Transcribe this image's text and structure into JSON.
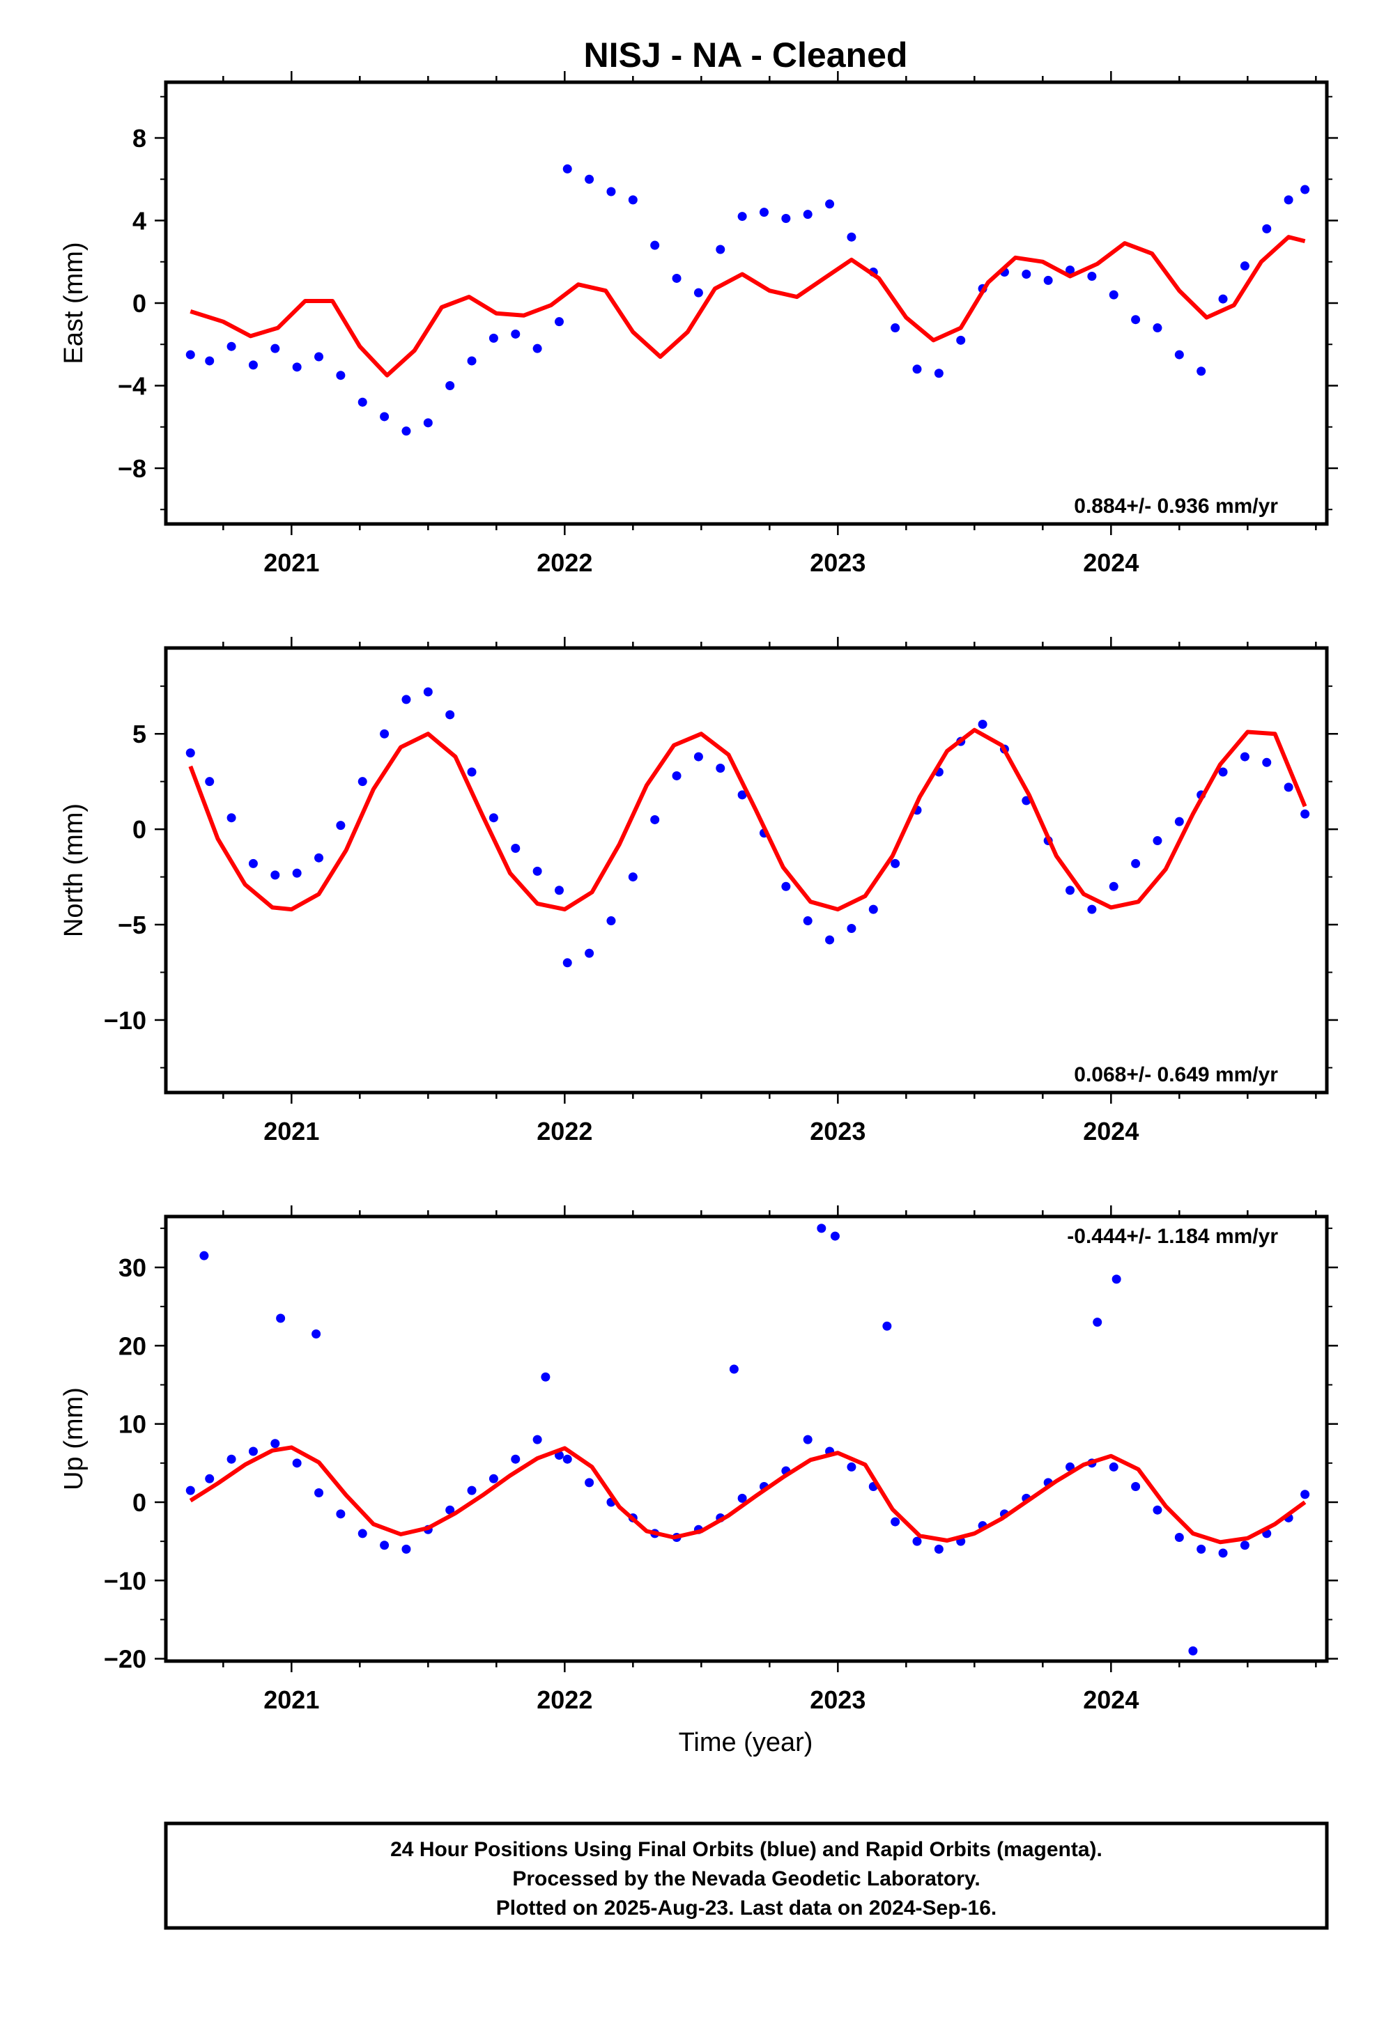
{
  "title": "NISJ  - NA - Cleaned",
  "chart_data": [
    {
      "type": "scatter",
      "ylabel": "East (mm)",
      "xlim": [
        2020.54,
        2024.79
      ],
      "ylim": [
        -10.7,
        10.7
      ],
      "yticks": [
        -8,
        -4,
        0,
        4,
        8
      ],
      "xticks": [
        2021,
        2022,
        2023,
        2024
      ],
      "xtick_labels": [
        "2021",
        "2022",
        "2023",
        "2024"
      ],
      "rate_label": "0.884+/- 0.936 mm/yr",
      "series": [
        {
          "color": "#0000ff",
          "x": [
            2020.63,
            2020.7,
            2020.78,
            2020.86,
            2020.94,
            2021.02,
            2021.1,
            2021.18,
            2021.26,
            2021.34,
            2021.42,
            2021.5,
            2021.58,
            2021.66,
            2021.74,
            2021.82,
            2021.9,
            2021.98,
            2022.01,
            2022.09,
            2022.17,
            2022.25,
            2022.33,
            2022.41,
            2022.49,
            2022.57,
            2022.65,
            2022.73,
            2022.81,
            2022.89,
            2022.97,
            2023.05,
            2023.13,
            2023.21,
            2023.29,
            2023.37,
            2023.45,
            2023.53,
            2023.61,
            2023.69,
            2023.77,
            2023.85,
            2023.93,
            2024.01,
            2024.09,
            2024.17,
            2024.25,
            2024.33,
            2024.41,
            2024.49,
            2024.57,
            2024.65,
            2024.71
          ],
          "y": [
            -2.5,
            -2.8,
            -2.1,
            -3.0,
            -2.2,
            -3.1,
            -2.6,
            -3.5,
            -4.8,
            -5.5,
            -6.2,
            -5.8,
            -4.0,
            -2.8,
            -1.7,
            -1.5,
            -2.2,
            -0.9,
            6.5,
            6.0,
            5.4,
            5.0,
            2.8,
            1.2,
            0.5,
            2.6,
            4.2,
            4.4,
            4.1,
            4.3,
            4.8,
            3.2,
            1.5,
            -1.2,
            -3.2,
            -3.4,
            -1.8,
            0.7,
            1.5,
            1.4,
            1.1,
            1.6,
            1.3,
            0.4,
            -0.8,
            -1.2,
            -2.5,
            -3.3,
            0.2,
            1.8,
            3.6,
            5.0,
            5.5
          ]
        },
        {
          "color": "#ff0000",
          "x": [
            2020.63,
            2020.75,
            2020.85,
            2020.95,
            2021.05,
            2021.15,
            2021.25,
            2021.35,
            2021.45,
            2021.55,
            2021.65,
            2021.75,
            2021.85,
            2021.95,
            2022.05,
            2022.15,
            2022.25,
            2022.35,
            2022.45,
            2022.55,
            2022.65,
            2022.75,
            2022.85,
            2022.95,
            2023.05,
            2023.15,
            2023.25,
            2023.35,
            2023.45,
            2023.55,
            2023.65,
            2023.75,
            2023.85,
            2023.95,
            2024.05,
            2024.15,
            2024.25,
            2024.35,
            2024.45,
            2024.55,
            2024.65,
            2024.71
          ],
          "y": [
            -0.4,
            -0.9,
            -1.6,
            -1.2,
            0.1,
            0.1,
            -2.1,
            -3.5,
            -2.3,
            -0.2,
            0.3,
            -0.5,
            -0.6,
            -0.1,
            0.9,
            0.6,
            -1.4,
            -2.6,
            -1.4,
            0.7,
            1.4,
            0.6,
            0.3,
            1.2,
            2.1,
            1.2,
            -0.7,
            -1.8,
            -1.2,
            1.0,
            2.2,
            2.0,
            1.3,
            1.9,
            2.9,
            2.4,
            0.6,
            -0.7,
            -0.1,
            2.0,
            3.2,
            3.0
          ]
        }
      ]
    },
    {
      "type": "scatter",
      "ylabel": "North (mm)",
      "xlim": [
        2020.54,
        2024.79
      ],
      "ylim": [
        -13.8,
        9.5
      ],
      "yticks": [
        -10,
        -5,
        0,
        5
      ],
      "xticks": [
        2021,
        2022,
        2023,
        2024
      ],
      "xtick_labels": [
        "2021",
        "2022",
        "2023",
        "2024"
      ],
      "rate_label": "0.068+/- 0.649 mm/yr",
      "series": [
        {
          "color": "#0000ff",
          "x": [
            2020.63,
            2020.7,
            2020.78,
            2020.86,
            2020.94,
            2021.02,
            2021.1,
            2021.18,
            2021.26,
            2021.34,
            2021.42,
            2021.5,
            2021.58,
            2021.66,
            2021.74,
            2021.82,
            2021.9,
            2021.98,
            2022.01,
            2022.09,
            2022.17,
            2022.25,
            2022.33,
            2022.41,
            2022.49,
            2022.57,
            2022.65,
            2022.73,
            2022.81,
            2022.89,
            2022.97,
            2023.05,
            2023.13,
            2023.21,
            2023.29,
            2023.37,
            2023.45,
            2023.53,
            2023.61,
            2023.69,
            2023.77,
            2023.85,
            2023.93,
            2024.01,
            2024.09,
            2024.17,
            2024.25,
            2024.33,
            2024.41,
            2024.49,
            2024.57,
            2024.65,
            2024.71
          ],
          "y": [
            4.0,
            2.5,
            0.6,
            -1.8,
            -2.4,
            -2.3,
            -1.5,
            0.2,
            2.5,
            5.0,
            6.8,
            7.2,
            6.0,
            3.0,
            0.6,
            -1.0,
            -2.2,
            -3.2,
            -7.0,
            -6.5,
            -4.8,
            -2.5,
            0.5,
            2.8,
            3.8,
            3.2,
            1.8,
            -0.2,
            -3.0,
            -4.8,
            -5.8,
            -5.2,
            -4.2,
            -1.8,
            1.0,
            3.0,
            4.6,
            5.5,
            4.2,
            1.5,
            -0.6,
            -3.2,
            -4.2,
            -3.0,
            -1.8,
            -0.6,
            0.4,
            1.8,
            3.0,
            3.8,
            3.5,
            2.2,
            0.8
          ]
        },
        {
          "color": "#ff0000",
          "x": [
            2020.63,
            2020.73,
            2020.83,
            2020.93,
            2021.0,
            2021.1,
            2021.2,
            2021.3,
            2021.4,
            2021.5,
            2021.6,
            2021.7,
            2021.8,
            2021.9,
            2022.0,
            2022.1,
            2022.2,
            2022.3,
            2022.4,
            2022.5,
            2022.6,
            2022.7,
            2022.8,
            2022.9,
            2023.0,
            2023.1,
            2023.2,
            2023.3,
            2023.4,
            2023.5,
            2023.6,
            2023.7,
            2023.8,
            2023.9,
            2024.0,
            2024.1,
            2024.2,
            2024.3,
            2024.4,
            2024.5,
            2024.6,
            2024.71
          ],
          "y": [
            3.3,
            -0.5,
            -2.9,
            -4.1,
            -4.2,
            -3.4,
            -1.1,
            2.1,
            4.3,
            5.0,
            3.8,
            0.7,
            -2.3,
            -3.9,
            -4.2,
            -3.3,
            -0.8,
            2.3,
            4.4,
            5.0,
            3.9,
            1.0,
            -2.0,
            -3.8,
            -4.2,
            -3.5,
            -1.4,
            1.7,
            4.1,
            5.2,
            4.4,
            1.8,
            -1.4,
            -3.4,
            -4.1,
            -3.8,
            -2.1,
            0.8,
            3.4,
            5.1,
            5.0,
            1.2
          ]
        }
      ]
    },
    {
      "type": "scatter",
      "ylabel": "Up (mm)",
      "xlabel": "Time (year)",
      "xlim": [
        2020.54,
        2024.79
      ],
      "ylim": [
        -20.3,
        36.5
      ],
      "yticks": [
        -20,
        -10,
        0,
        10,
        20,
        30
      ],
      "xticks": [
        2021,
        2022,
        2023,
        2024
      ],
      "xtick_labels": [
        "2021",
        "2022",
        "2023",
        "2024"
      ],
      "rate_label": "-0.444+/- 1.184 mm/yr",
      "series": [
        {
          "color": "#0000ff",
          "x": [
            2020.63,
            2020.7,
            2020.78,
            2020.86,
            2020.94,
            2021.02,
            2021.1,
            2021.18,
            2021.26,
            2021.34,
            2021.42,
            2021.5,
            2021.58,
            2021.66,
            2021.74,
            2021.82,
            2021.9,
            2021.98,
            2022.01,
            2022.09,
            2022.17,
            2022.25,
            2022.33,
            2022.41,
            2022.49,
            2022.57,
            2022.65,
            2022.73,
            2022.81,
            2022.89,
            2022.97,
            2023.05,
            2023.13,
            2023.21,
            2023.29,
            2023.37,
            2023.45,
            2023.53,
            2023.61,
            2023.69,
            2023.77,
            2023.85,
            2023.93,
            2024.01,
            2024.09,
            2024.17,
            2024.25,
            2024.33,
            2024.41,
            2024.49,
            2024.57,
            2024.65,
            2024.71,
            2020.68,
            2020.96,
            2021.09,
            2021.93,
            2022.62,
            2022.94,
            2022.99,
            2023.18,
            2023.95,
            2024.02,
            2024.3
          ],
          "y": [
            1.5,
            3.0,
            5.5,
            6.5,
            7.5,
            5.0,
            1.2,
            -1.5,
            -4.0,
            -5.5,
            -6.0,
            -3.5,
            -1.0,
            1.5,
            3.0,
            5.5,
            8.0,
            6.0,
            5.5,
            2.5,
            0.0,
            -2.0,
            -4.0,
            -4.5,
            -3.5,
            -2.0,
            0.5,
            2.0,
            4.0,
            8.0,
            6.5,
            4.5,
            2.0,
            -2.5,
            -5.0,
            -6.0,
            -5.0,
            -3.0,
            -1.5,
            0.5,
            2.5,
            4.5,
            5.0,
            4.5,
            2.0,
            -1.0,
            -4.5,
            -6.0,
            -6.5,
            -5.5,
            -4.0,
            -2.0,
            1.0,
            31.5,
            23.5,
            21.5,
            16.0,
            17.0,
            35.0,
            34.0,
            22.5,
            23.0,
            28.5,
            -19.0
          ]
        },
        {
          "color": "#ff0000",
          "x": [
            2020.63,
            2020.73,
            2020.83,
            2020.93,
            2021.0,
            2021.1,
            2021.2,
            2021.3,
            2021.4,
            2021.5,
            2021.6,
            2021.7,
            2021.8,
            2021.9,
            2022.0,
            2022.1,
            2022.2,
            2022.3,
            2022.4,
            2022.5,
            2022.6,
            2022.7,
            2022.8,
            2022.9,
            2023.0,
            2023.1,
            2023.2,
            2023.3,
            2023.4,
            2023.5,
            2023.6,
            2023.7,
            2023.8,
            2023.9,
            2024.0,
            2024.1,
            2024.2,
            2024.3,
            2024.4,
            2024.5,
            2024.6,
            2024.71
          ],
          "y": [
            0.2,
            2.4,
            4.8,
            6.6,
            7.0,
            5.1,
            0.9,
            -2.8,
            -4.1,
            -3.3,
            -1.4,
            0.9,
            3.4,
            5.6,
            6.9,
            4.5,
            -0.6,
            -3.7,
            -4.5,
            -3.7,
            -1.7,
            0.8,
            3.2,
            5.4,
            6.3,
            4.8,
            -0.9,
            -4.3,
            -4.9,
            -4.0,
            -2.1,
            0.3,
            2.7,
            4.8,
            5.9,
            4.2,
            -0.5,
            -4.0,
            -5.1,
            -4.6,
            -2.8,
            0.0
          ]
        }
      ]
    }
  ],
  "footer": {
    "lines": [
      "24 Hour Positions Using Final Orbits (blue) and Rapid Orbits (magenta).",
      "Processed by the Nevada Geodetic Laboratory.",
      "Plotted on 2025-Aug-23. Last data on 2024-Sep-16."
    ]
  }
}
